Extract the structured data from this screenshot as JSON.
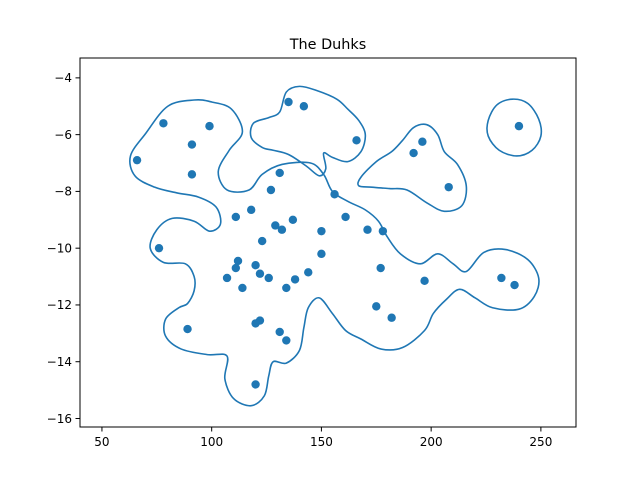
{
  "chart_data": {
    "type": "scatter",
    "title": "The Duhks",
    "xlabel": "",
    "ylabel": "",
    "xlim": [
      40,
      266
    ],
    "ylim": [
      -16.3,
      -3.3
    ],
    "xticks": [
      50,
      100,
      150,
      200,
      250
    ],
    "yticks": [
      -16,
      -14,
      -12,
      -10,
      -8,
      -6,
      -4
    ],
    "grid": false,
    "legend": "none",
    "series": [
      {
        "color": "#1f77b4",
        "points": [
          {
            "x": 78,
            "y": -5.6
          },
          {
            "x": 66,
            "y": -6.9
          },
          {
            "x": 91,
            "y": -6.35
          },
          {
            "x": 99,
            "y": -5.7
          },
          {
            "x": 91,
            "y": -7.4
          },
          {
            "x": 135,
            "y": -4.85
          },
          {
            "x": 142,
            "y": -5.0
          },
          {
            "x": 166,
            "y": -6.2
          },
          {
            "x": 196,
            "y": -6.25
          },
          {
            "x": 192,
            "y": -6.65
          },
          {
            "x": 208,
            "y": -7.85
          },
          {
            "x": 240,
            "y": -5.7
          },
          {
            "x": 131,
            "y": -7.35
          },
          {
            "x": 127,
            "y": -7.95
          },
          {
            "x": 156,
            "y": -8.1
          },
          {
            "x": 118,
            "y": -8.65
          },
          {
            "x": 111,
            "y": -8.9
          },
          {
            "x": 137,
            "y": -9.0
          },
          {
            "x": 161,
            "y": -8.9
          },
          {
            "x": 129,
            "y": -9.2
          },
          {
            "x": 132,
            "y": -9.35
          },
          {
            "x": 150,
            "y": -9.4
          },
          {
            "x": 171,
            "y": -9.35
          },
          {
            "x": 178,
            "y": -9.4
          },
          {
            "x": 123,
            "y": -9.75
          },
          {
            "x": 76,
            "y": -10.0
          },
          {
            "x": 150,
            "y": -10.2
          },
          {
            "x": 112,
            "y": -10.45
          },
          {
            "x": 120,
            "y": -10.6
          },
          {
            "x": 111,
            "y": -10.7
          },
          {
            "x": 177,
            "y": -10.7
          },
          {
            "x": 144,
            "y": -10.85
          },
          {
            "x": 122,
            "y": -10.9
          },
          {
            "x": 107,
            "y": -11.05
          },
          {
            "x": 126,
            "y": -11.05
          },
          {
            "x": 138,
            "y": -11.1
          },
          {
            "x": 197,
            "y": -11.15
          },
          {
            "x": 232,
            "y": -11.05
          },
          {
            "x": 238,
            "y": -11.3
          },
          {
            "x": 114,
            "y": -11.4
          },
          {
            "x": 134,
            "y": -11.4
          },
          {
            "x": 175,
            "y": -12.05
          },
          {
            "x": 182,
            "y": -12.45
          },
          {
            "x": 122,
            "y": -12.55
          },
          {
            "x": 120,
            "y": -12.65
          },
          {
            "x": 89,
            "y": -12.85
          },
          {
            "x": 131,
            "y": -12.95
          },
          {
            "x": 134,
            "y": -13.25
          },
          {
            "x": 120,
            "y": -14.8
          }
        ]
      }
    ],
    "contours": [
      {
        "color": "#1f77b4",
        "points": [
          [
            70,
            -5.95
          ],
          [
            80,
            -5.0
          ],
          [
            92,
            -4.78
          ],
          [
            100,
            -4.85
          ],
          [
            109,
            -5.1
          ],
          [
            114,
            -5.9
          ],
          [
            108,
            -6.55
          ],
          [
            103,
            -7.3
          ],
          [
            107,
            -7.95
          ],
          [
            117,
            -7.95
          ],
          [
            123,
            -7.4
          ],
          [
            132,
            -7.05
          ],
          [
            145,
            -7.0
          ],
          [
            151,
            -7.4
          ],
          [
            155,
            -8.0
          ],
          [
            162,
            -8.35
          ],
          [
            170,
            -8.65
          ],
          [
            176,
            -9.05
          ],
          [
            180,
            -9.6
          ],
          [
            186,
            -10.2
          ],
          [
            195,
            -10.55
          ],
          [
            203,
            -10.2
          ],
          [
            210,
            -10.55
          ],
          [
            216,
            -10.82
          ],
          [
            224,
            -10.15
          ],
          [
            234,
            -10.05
          ],
          [
            244,
            -10.4
          ],
          [
            249,
            -11.05
          ],
          [
            247,
            -11.7
          ],
          [
            240,
            -12.15
          ],
          [
            228,
            -12.1
          ],
          [
            220,
            -11.75
          ],
          [
            213,
            -11.45
          ],
          [
            207,
            -11.8
          ],
          [
            201,
            -12.3
          ],
          [
            197,
            -12.9
          ],
          [
            187,
            -13.5
          ],
          [
            177,
            -13.55
          ],
          [
            168,
            -13.2
          ],
          [
            161,
            -12.9
          ],
          [
            155,
            -12.3
          ],
          [
            149,
            -11.75
          ],
          [
            144,
            -12.1
          ],
          [
            142,
            -12.8
          ],
          [
            140,
            -13.6
          ],
          [
            134,
            -14.05
          ],
          [
            128,
            -14.0
          ],
          [
            126,
            -14.5
          ],
          [
            124,
            -15.2
          ],
          [
            118,
            -15.55
          ],
          [
            110,
            -15.3
          ],
          [
            106,
            -14.6
          ],
          [
            107,
            -13.8
          ],
          [
            98,
            -13.75
          ],
          [
            86,
            -13.55
          ],
          [
            79,
            -13.1
          ],
          [
            79,
            -12.5
          ],
          [
            85,
            -12.1
          ],
          [
            89,
            -11.95
          ],
          [
            92,
            -11.5
          ],
          [
            92,
            -11.0
          ],
          [
            88,
            -10.55
          ],
          [
            78,
            -10.5
          ],
          [
            72,
            -10.0
          ],
          [
            75,
            -9.35
          ],
          [
            82,
            -8.95
          ],
          [
            92,
            -9.05
          ],
          [
            99,
            -9.4
          ],
          [
            104,
            -9.15
          ],
          [
            102,
            -8.55
          ],
          [
            94,
            -8.2
          ],
          [
            84,
            -8.05
          ],
          [
            74,
            -7.85
          ],
          [
            65,
            -7.45
          ],
          [
            63,
            -6.75
          ]
        ]
      },
      {
        "color": "#1f77b4",
        "points": [
          [
            131,
            -5.2
          ],
          [
            134,
            -4.5
          ],
          [
            140,
            -4.3
          ],
          [
            148,
            -4.45
          ],
          [
            157,
            -4.75
          ],
          [
            162,
            -5.1
          ],
          [
            167,
            -5.5
          ],
          [
            170,
            -6.0
          ],
          [
            168,
            -6.6
          ],
          [
            162,
            -6.95
          ],
          [
            155,
            -6.8
          ],
          [
            151,
            -6.65
          ],
          [
            152,
            -7.2
          ],
          [
            149,
            -7.45
          ],
          [
            143,
            -7.1
          ],
          [
            135,
            -6.7
          ],
          [
            128,
            -6.55
          ],
          [
            123,
            -6.45
          ],
          [
            118,
            -6.1
          ],
          [
            119,
            -5.6
          ],
          [
            126,
            -5.4
          ]
        ]
      },
      {
        "color": "#1f77b4",
        "points": [
          [
            168,
            -7.5
          ],
          [
            175,
            -6.95
          ],
          [
            182,
            -6.6
          ],
          [
            187,
            -6.2
          ],
          [
            192,
            -5.75
          ],
          [
            198,
            -5.65
          ],
          [
            203,
            -6.0
          ],
          [
            206,
            -6.6
          ],
          [
            212,
            -7.05
          ],
          [
            216,
            -7.8
          ],
          [
            214,
            -8.5
          ],
          [
            206,
            -8.7
          ],
          [
            198,
            -8.4
          ],
          [
            189,
            -7.95
          ],
          [
            181,
            -7.9
          ],
          [
            173,
            -7.85
          ],
          [
            167,
            -7.8
          ]
        ]
      },
      {
        "color": "#1f77b4",
        "points": [
          [
            226,
            -5.5
          ],
          [
            230,
            -4.95
          ],
          [
            237,
            -4.75
          ],
          [
            244,
            -4.9
          ],
          [
            249,
            -5.45
          ],
          [
            250,
            -6.05
          ],
          [
            246,
            -6.55
          ],
          [
            239,
            -6.75
          ],
          [
            231,
            -6.55
          ],
          [
            226,
            -6.05
          ]
        ]
      }
    ]
  }
}
